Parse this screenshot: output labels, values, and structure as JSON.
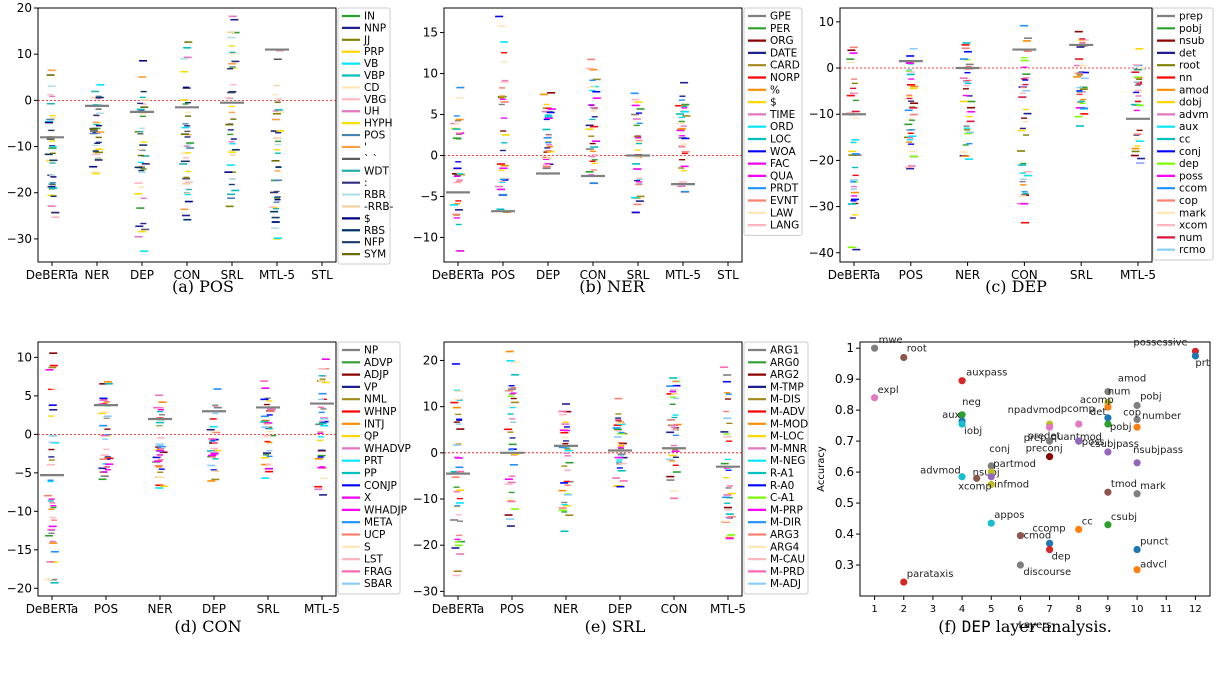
{
  "panels": [
    {
      "type": "strip",
      "caption": "(a) POS",
      "categories": [
        "DeBERTa",
        "NER",
        "DEP",
        "CON",
        "SRL",
        "MTL-5",
        "STL"
      ],
      "ylim": [
        -35,
        20
      ],
      "yticks": [
        -30,
        -20,
        -10,
        0,
        10,
        20
      ],
      "legend": [
        {
          "name": "IN",
          "color": "#2ca02c"
        },
        {
          "name": "NNP",
          "color": "#1f1f8f"
        },
        {
          "name": "JJ",
          "color": "#808000"
        },
        {
          "name": "PRP",
          "color": "#ffd700"
        },
        {
          "name": "VB",
          "color": "#00e5ff"
        },
        {
          "name": "VBP",
          "color": "#00bfbf"
        },
        {
          "name": "CD",
          "color": "#ffe4b5"
        },
        {
          "name": "VBG",
          "color": "#ffb6c1"
        },
        {
          "name": "UH",
          "color": "#e377c2"
        },
        {
          "name": "HYPH",
          "color": "#f5e000"
        },
        {
          "name": "POS",
          "color": "#4682b4"
        },
        {
          "name": "'",
          "color": "#ff9f43"
        },
        {
          "name": "` `",
          "color": "#5c5c5c"
        },
        {
          "name": "WDT",
          "color": "#20b2aa"
        },
        {
          "name": ":",
          "color": "#2f2f7f"
        },
        {
          "name": "RBR",
          "color": "#b0e0e6"
        },
        {
          "name": "-RRB-",
          "color": "#f4d0a0"
        },
        {
          "name": "$",
          "color": "#000080"
        },
        {
          "name": "RBS",
          "color": "#003366"
        },
        {
          "name": "NFP",
          "color": "#1a3a6a"
        },
        {
          "name": "SYM",
          "color": "#6b6b00"
        }
      ],
      "means": [
        -8.0,
        -1.2,
        -2.5,
        -1.5,
        -0.5,
        11.0,
        null
      ],
      "ranges": [
        [
          -27,
          7
        ],
        [
          -16,
          4
        ],
        [
          -33,
          9
        ],
        [
          -27,
          13
        ],
        [
          -27,
          20
        ],
        [
          -30,
          11
        ],
        null
      ]
    },
    {
      "type": "strip",
      "caption": "(b) NER",
      "categories": [
        "DeBERTa",
        "POS",
        "DEP",
        "CON",
        "SRL",
        "MTL-5",
        "STL"
      ],
      "ylim": [
        -13,
        18
      ],
      "yticks": [
        -10,
        -5,
        0,
        5,
        10,
        15
      ],
      "legend": [
        {
          "name": "GPE",
          "color": "#7f7f7f"
        },
        {
          "name": "PER",
          "color": "#2ca02c"
        },
        {
          "name": "ORG",
          "color": "#8b0000"
        },
        {
          "name": "DATE",
          "color": "#1f1f8f"
        },
        {
          "name": "CARD",
          "color": "#a0891a"
        },
        {
          "name": "NORP",
          "color": "#ff0000"
        },
        {
          "name": "%",
          "color": "#ff8c00"
        },
        {
          "name": "$",
          "color": "#ffd700"
        },
        {
          "name": "TIME",
          "color": "#e377c2"
        },
        {
          "name": "ORD",
          "color": "#00e5ff"
        },
        {
          "name": "LOC",
          "color": "#00bfbf"
        },
        {
          "name": "WOA",
          "color": "#0000ff"
        },
        {
          "name": "FAC",
          "color": "#ee00ee"
        },
        {
          "name": "QUA",
          "color": "#ff00ff"
        },
        {
          "name": "PRDT",
          "color": "#1e90ff"
        },
        {
          "name": "EVNT",
          "color": "#fa8072"
        },
        {
          "name": "LAW",
          "color": "#ffe4b5"
        },
        {
          "name": "LANG",
          "color": "#ffb6c1"
        }
      ],
      "means": [
        -4.5,
        -6.8,
        -2.2,
        -2.5,
        0.0,
        -3.5,
        null
      ],
      "ranges": [
        [
          -12,
          9
        ],
        [
          -7,
          17
        ],
        [
          -3,
          8
        ],
        [
          -5,
          12
        ],
        [
          -7,
          8
        ],
        [
          -6,
          10
        ],
        null
      ]
    },
    {
      "type": "strip",
      "caption": "(c) DEP",
      "categories": [
        "DeBERTa",
        "POS",
        "NER",
        "CON",
        "SRL",
        "MTL-5"
      ],
      "ylim": [
        -42,
        13
      ],
      "yticks": [
        -40,
        -30,
        -20,
        -10,
        0,
        10
      ],
      "legend": [
        {
          "name": "prep",
          "color": "#7f7f7f"
        },
        {
          "name": "pobj",
          "color": "#2ca02c"
        },
        {
          "name": "nsub",
          "color": "#8b0000"
        },
        {
          "name": "det",
          "color": "#1f1f8f"
        },
        {
          "name": "root",
          "color": "#808000"
        },
        {
          "name": "nn",
          "color": "#ff0000"
        },
        {
          "name": "amod",
          "color": "#ff8c00"
        },
        {
          "name": "dobj",
          "color": "#ffd700"
        },
        {
          "name": "advm",
          "color": "#e377c2"
        },
        {
          "name": "aux",
          "color": "#00e5ff"
        },
        {
          "name": "cc",
          "color": "#00bfbf"
        },
        {
          "name": "conj",
          "color": "#0000ff"
        },
        {
          "name": "dep",
          "color": "#7cfc00"
        },
        {
          "name": "poss",
          "color": "#ff00ff"
        },
        {
          "name": "ccom",
          "color": "#1e90ff"
        },
        {
          "name": "cop",
          "color": "#fa8072"
        },
        {
          "name": "mark",
          "color": "#ffe4b5"
        },
        {
          "name": "xcom",
          "color": "#ffb6c1"
        },
        {
          "name": "num",
          "color": "#dc143c"
        },
        {
          "name": "rcmo",
          "color": "#87cefa"
        }
      ],
      "means": [
        -10.0,
        1.5,
        0.0,
        4.0,
        5.0,
        -11.0
      ],
      "ranges": [
        [
          -40,
          5
        ],
        [
          -22,
          6
        ],
        [
          -21,
          6
        ],
        [
          -34,
          10
        ],
        [
          -13,
          10
        ],
        [
          -21,
          6
        ]
      ]
    },
    {
      "type": "strip",
      "caption": "(d) CON",
      "categories": [
        "DeBERTa",
        "POS",
        "NER",
        "DEP",
        "SRL",
        "MTL-5"
      ],
      "ylim": [
        -21,
        12
      ],
      "yticks": [
        -20,
        -15,
        -10,
        -5,
        0,
        5,
        10
      ],
      "legend": [
        {
          "name": "NP",
          "color": "#7f7f7f"
        },
        {
          "name": "ADVP",
          "color": "#2ca02c"
        },
        {
          "name": "ADJP",
          "color": "#8b0000"
        },
        {
          "name": "VP",
          "color": "#1f1f8f"
        },
        {
          "name": "NML",
          "color": "#a0891a"
        },
        {
          "name": "WHNP",
          "color": "#ff0000"
        },
        {
          "name": "INTJ",
          "color": "#ff8c00"
        },
        {
          "name": "QP",
          "color": "#ffd700"
        },
        {
          "name": "WHADVP",
          "color": "#e377c2"
        },
        {
          "name": "PRT",
          "color": "#00e5ff"
        },
        {
          "name": "PP",
          "color": "#00bfbf"
        },
        {
          "name": "CONJP",
          "color": "#0000ff"
        },
        {
          "name": "X",
          "color": "#ee00ee"
        },
        {
          "name": "WHADJP",
          "color": "#ff00ff"
        },
        {
          "name": "META",
          "color": "#1e90ff"
        },
        {
          "name": "UCP",
          "color": "#fa8072"
        },
        {
          "name": "S",
          "color": "#ffe4b5"
        },
        {
          "name": "LST",
          "color": "#ffb6c1"
        },
        {
          "name": "FRAG",
          "color": "#ff69b4"
        },
        {
          "name": "SBAR",
          "color": "#87cefa"
        }
      ],
      "means": [
        -5.3,
        3.8,
        2.0,
        3.0,
        3.5,
        4.0
      ],
      "ranges": [
        [
          -20,
          11
        ],
        [
          -7,
          7
        ],
        [
          -7,
          6
        ],
        [
          -8,
          6
        ],
        [
          -6,
          7
        ],
        [
          -8,
          11
        ]
      ]
    },
    {
      "type": "strip",
      "caption": "(e) SRL",
      "categories": [
        "DeBERTa",
        "POS",
        "NER",
        "DEP",
        "CON",
        "MTL-5"
      ],
      "ylim": [
        -31,
        24
      ],
      "yticks": [
        -30,
        -20,
        -10,
        0,
        10,
        20
      ],
      "legend": [
        {
          "name": "ARG1",
          "color": "#7f7f7f"
        },
        {
          "name": "ARG0",
          "color": "#2ca02c"
        },
        {
          "name": "ARG2",
          "color": "#8b0000"
        },
        {
          "name": "M-TMP",
          "color": "#1f1f8f"
        },
        {
          "name": "M-DIS",
          "color": "#a0891a"
        },
        {
          "name": "M-ADV",
          "color": "#ff0000"
        },
        {
          "name": "M-MOD",
          "color": "#ff8c00"
        },
        {
          "name": "M-LOC",
          "color": "#ffd700"
        },
        {
          "name": "M-MNR",
          "color": "#e377c2"
        },
        {
          "name": "M-NEG",
          "color": "#00e5ff"
        },
        {
          "name": "R-A1",
          "color": "#00bfbf"
        },
        {
          "name": "R-A0",
          "color": "#0000ff"
        },
        {
          "name": "C-A1",
          "color": "#7cfc00"
        },
        {
          "name": "M-PRP",
          "color": "#ff00ff"
        },
        {
          "name": "M-DIR",
          "color": "#1e90ff"
        },
        {
          "name": "ARG3",
          "color": "#fa8072"
        },
        {
          "name": "ARG4",
          "color": "#ffe4b5"
        },
        {
          "name": "M-CAU",
          "color": "#ffb6c1"
        },
        {
          "name": "M-PRD",
          "color": "#ff69b4"
        },
        {
          "name": "M-ADJ",
          "color": "#87cefa"
        }
      ],
      "means": [
        -4.5,
        0.0,
        1.5,
        0.5,
        1.0,
        -3.0
      ],
      "ranges": [
        [
          -28,
          22
        ],
        [
          -17,
          22
        ],
        [
          -17,
          11
        ],
        [
          -8,
          12
        ],
        [
          -10,
          22
        ],
        [
          -20,
          19
        ]
      ]
    },
    {
      "type": "scatter",
      "caption_prefix": "(f) ",
      "caption_mono": "DEP",
      "caption_suffix": " layer analysis.",
      "xlabel": "Layers",
      "ylabel": "Accuracy",
      "xlim": [
        0.5,
        12.5
      ],
      "ylim": [
        0.2,
        1.02
      ],
      "xticks": [
        1,
        2,
        3,
        4,
        5,
        6,
        7,
        8,
        9,
        10,
        11,
        12
      ],
      "yticks": [
        0.3,
        0.4,
        0.5,
        0.6,
        0.7,
        0.8,
        0.9,
        1.0
      ],
      "points": [
        {
          "label": "mwe",
          "x": 1,
          "y": 1.0,
          "color": "#7f7f7f",
          "dx": 4,
          "dy": -5
        },
        {
          "label": "expl",
          "x": 1,
          "y": 0.84,
          "color": "#e377c2",
          "dx": 3,
          "dy": -5
        },
        {
          "label": "root",
          "x": 2,
          "y": 0.97,
          "color": "#8c564b",
          "dx": 3,
          "dy": -6
        },
        {
          "label": "parataxis",
          "x": 2,
          "y": 0.245,
          "color": "#d62728",
          "dx": 3,
          "dy": -5
        },
        {
          "label": "auxpass",
          "x": 4,
          "y": 0.895,
          "color": "#d62728",
          "dx": 4,
          "dy": -5
        },
        {
          "label": "neg",
          "x": 4,
          "y": 0.785,
          "color": "#2ca02c",
          "dx": 0,
          "dy": -10
        },
        {
          "label": "aux",
          "x": 4,
          "y": 0.765,
          "color": "#1f77b4",
          "dx": -20,
          "dy": -3
        },
        {
          "label": "iobj",
          "x": 4,
          "y": 0.755,
          "color": "#17becf",
          "dx": 2,
          "dy": 10
        },
        {
          "label": "advmod",
          "x": 4,
          "y": 0.585,
          "color": "#17becf",
          "dx": -42,
          "dy": -3
        },
        {
          "label": "nsubj",
          "x": 4.5,
          "y": 0.58,
          "color": "#8c564b",
          "dx": -4,
          "dy": -3
        },
        {
          "label": "appos",
          "x": 5,
          "y": 0.435,
          "color": "#17becf",
          "dx": 3,
          "dy": -5
        },
        {
          "label": "conj",
          "x": 5,
          "y": 0.62,
          "color": "#7f7f7f",
          "dx": -2,
          "dy": -14
        },
        {
          "label": "partmod",
          "x": 5,
          "y": 0.6,
          "color": "#bcbd22",
          "dx": 2,
          "dy": -5
        },
        {
          "label": "xcomp",
          "x": 5,
          "y": 0.56,
          "color": "#bcbd22",
          "dx": -33,
          "dy": 5
        },
        {
          "label": "infmod",
          "x": 5,
          "y": 0.585,
          "color": "#9467bd",
          "dx": 3,
          "dy": 11
        },
        {
          "label": "rcmod",
          "x": 7,
          "y": 0.37,
          "color": "#1f77b4",
          "dx": -30,
          "dy": -5
        },
        {
          "label": "dep",
          "x": 7,
          "y": 0.35,
          "color": "#d62728",
          "dx": 2,
          "dy": 10
        },
        {
          "label": "discourse",
          "x": 6,
          "y": 0.3,
          "color": "#7f7f7f",
          "dx": 3,
          "dy": 10
        },
        {
          "label": "ccomp",
          "x": 6,
          "y": 0.395,
          "color": "#8c564b",
          "dx": 12,
          "dy": -4
        },
        {
          "label": "cc",
          "x": 8,
          "y": 0.415,
          "color": "#ff7f0e",
          "dx": 3,
          "dy": -5
        },
        {
          "label": "npadvmod",
          "x": 7,
          "y": 0.755,
          "color": "#bcbd22",
          "dx": -42,
          "dy": -11
        },
        {
          "label": "predet",
          "x": 7,
          "y": 0.745,
          "color": "#e377c2",
          "dx": -22,
          "dy": 12
        },
        {
          "label": "prep",
          "x": 7,
          "y": 0.7,
          "color": "#7f7f7f",
          "dx": -26,
          "dy": 0
        },
        {
          "label": "quantmod",
          "x": 8,
          "y": 0.7,
          "color": "#2ca02c",
          "dx": -28,
          "dy": -1
        },
        {
          "label": "preconj",
          "x": 7,
          "y": 0.65,
          "color": "#8b0000",
          "dx": -24,
          "dy": -5
        },
        {
          "label": "pcomp",
          "x": 8,
          "y": 0.755,
          "color": "#e377c2",
          "dx": -18,
          "dy": -12
        },
        {
          "label": "poss",
          "x": 8,
          "y": 0.7,
          "color": "#9467bd",
          "dx": 3,
          "dy": 4
        },
        {
          "label": "amod",
          "x": 9,
          "y": 0.86,
          "color": "#7f7f7f",
          "dx": 10,
          "dy": -10
        },
        {
          "label": "num",
          "x": 9,
          "y": 0.825,
          "color": "#bcbd22",
          "dx": 0,
          "dy": -8
        },
        {
          "label": "acomp",
          "x": 9,
          "y": 0.81,
          "color": "#ff7f0e",
          "dx": -28,
          "dy": -4
        },
        {
          "label": "det",
          "x": 9,
          "y": 0.775,
          "color": "#1f77b4",
          "dx": -18,
          "dy": -3
        },
        {
          "label": "pobj",
          "x": 9,
          "y": 0.755,
          "color": "#2ca02c",
          "dx": 2,
          "dy": 6
        },
        {
          "label": "csubjpass",
          "x": 9,
          "y": 0.665,
          "color": "#9467bd",
          "dx": -18,
          "dy": -5
        },
        {
          "label": "tmod",
          "x": 9,
          "y": 0.535,
          "color": "#8c564b",
          "dx": 3,
          "dy": -5
        },
        {
          "label": "csubj",
          "x": 9,
          "y": 0.43,
          "color": "#2ca02c",
          "dx": 3,
          "dy": -5
        },
        {
          "label": "pobj",
          "x": 10,
          "y": 0.815,
          "color": "#7f7f7f",
          "dx": 3,
          "dy": -6
        },
        {
          "label": "cop",
          "x": 10,
          "y": 0.77,
          "color": "#7f7f7f",
          "dx": -14,
          "dy": -4
        },
        {
          "label": "number",
          "x": 10,
          "y": 0.745,
          "color": "#ff7f0e",
          "dx": 5,
          "dy": -8
        },
        {
          "label": "nsubjpass",
          "x": 10,
          "y": 0.63,
          "color": "#9467bd",
          "dx": -4,
          "dy": -10
        },
        {
          "label": "mark",
          "x": 10,
          "y": 0.53,
          "color": "#7f7f7f",
          "dx": 3,
          "dy": -5
        },
        {
          "label": "punct",
          "x": 10,
          "y": 0.35,
          "color": "#1f77b4",
          "dx": 3,
          "dy": -5
        },
        {
          "label": "advcl",
          "x": 10,
          "y": 0.285,
          "color": "#ff7f0e",
          "dx": 3,
          "dy": -2
        },
        {
          "label": "possessive",
          "x": 12,
          "y": 0.99,
          "color": "#d62728",
          "dx": -62,
          "dy": -6
        },
        {
          "label": "prt",
          "x": 12,
          "y": 0.975,
          "color": "#1f77b4",
          "dx": 0,
          "dy": 10
        }
      ]
    }
  ]
}
